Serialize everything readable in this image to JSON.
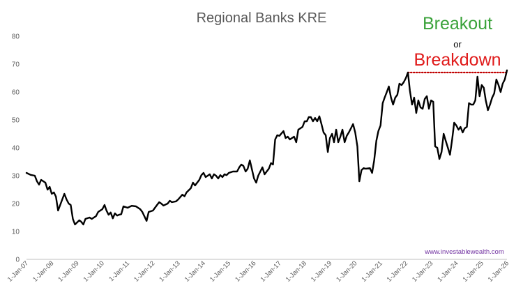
{
  "chart_data": {
    "type": "line",
    "title": "Regional Banks KRE",
    "xlabel": "",
    "ylabel": "",
    "ylim": [
      0,
      80
    ],
    "yticks": [
      "0",
      "10",
      "20",
      "30",
      "40",
      "50",
      "60",
      "70",
      "80"
    ],
    "xlim": [
      "2007-01-01",
      "2026-01-01"
    ],
    "xticks": [
      "1-Jan-07",
      "1-Jan-08",
      "1-Jan-09",
      "1-Jan-10",
      "1-Jan-11",
      "1-Jan-12",
      "1-Jan-13",
      "1-Jan-14",
      "1-Jan-15",
      "1-Jan-16",
      "1-Jan-17",
      "1-Jan-18",
      "1-Jan-19",
      "1-Jan-20",
      "1-Jan-21",
      "1-Jan-22",
      "1-Jan-23",
      "1-Jan-24",
      "1-Jan-25",
      "1-Jan-26"
    ],
    "grid": false,
    "series": [
      {
        "color": "#000000",
        "points": [
          [
            "2007-01",
            31
          ],
          [
            "2007-03",
            30.3
          ],
          [
            "2007-05",
            30
          ],
          [
            "2007-06",
            28
          ],
          [
            "2007-07",
            26.8
          ],
          [
            "2007-08",
            28.5
          ],
          [
            "2007-09",
            28
          ],
          [
            "2007-10",
            27.5
          ],
          [
            "2007-11",
            25
          ],
          [
            "2007-12",
            26
          ],
          [
            "2008-01",
            23.5
          ],
          [
            "2008-02",
            24
          ],
          [
            "2008-03",
            22.5
          ],
          [
            "2008-04",
            17.5
          ],
          [
            "2008-06",
            21.5
          ],
          [
            "2008-07",
            23.5
          ],
          [
            "2008-08",
            21.5
          ],
          [
            "2008-09",
            20
          ],
          [
            "2008-10",
            19.5
          ],
          [
            "2008-11",
            14.5
          ],
          [
            "2008-12",
            12.5
          ],
          [
            "2009-02",
            14
          ],
          [
            "2009-03",
            13.5
          ],
          [
            "2009-04",
            12.5
          ],
          [
            "2009-05",
            14.5
          ],
          [
            "2009-07",
            15
          ],
          [
            "2009-08",
            14.5
          ],
          [
            "2009-10",
            15.5
          ],
          [
            "2009-11",
            17
          ],
          [
            "2010-01",
            18
          ],
          [
            "2010-02",
            19.5
          ],
          [
            "2010-03",
            17.5
          ],
          [
            "2010-04",
            16
          ],
          [
            "2010-05",
            16.8
          ],
          [
            "2010-06",
            14.7
          ],
          [
            "2010-07",
            16.5
          ],
          [
            "2010-08",
            15.7
          ],
          [
            "2010-09",
            16
          ],
          [
            "2010-10",
            16.2
          ],
          [
            "2010-11",
            19
          ],
          [
            "2011-01",
            18.5
          ],
          [
            "2011-03",
            19.2
          ],
          [
            "2011-05",
            19
          ],
          [
            "2011-07",
            18
          ],
          [
            "2011-08",
            17
          ],
          [
            "2011-10",
            13.8
          ],
          [
            "2011-11",
            17
          ],
          [
            "2012-01",
            17.5
          ],
          [
            "2012-03",
            19.5
          ],
          [
            "2012-04",
            20.5
          ],
          [
            "2012-05",
            20
          ],
          [
            "2012-06",
            19.3
          ],
          [
            "2012-08",
            20
          ],
          [
            "2012-09",
            21
          ],
          [
            "2012-10",
            20.5
          ],
          [
            "2012-12",
            20.8
          ],
          [
            "2013-01",
            21.5
          ],
          [
            "2013-03",
            23.2
          ],
          [
            "2013-04",
            22.6
          ],
          [
            "2013-05",
            24
          ],
          [
            "2013-07",
            25.5
          ],
          [
            "2013-08",
            27.5
          ],
          [
            "2013-09",
            26.5
          ],
          [
            "2013-11",
            28.5
          ],
          [
            "2013-12",
            30.2
          ],
          [
            "2014-01",
            31
          ],
          [
            "2014-02",
            29.5
          ],
          [
            "2014-04",
            30.5
          ],
          [
            "2014-05",
            29
          ],
          [
            "2014-06",
            30.5
          ],
          [
            "2014-07",
            30
          ],
          [
            "2014-08",
            29
          ],
          [
            "2014-09",
            30.2
          ],
          [
            "2014-10",
            29.5
          ],
          [
            "2014-11",
            30.5
          ],
          [
            "2014-12",
            30.2
          ],
          [
            "2015-01",
            31
          ],
          [
            "2015-03",
            31.5
          ],
          [
            "2015-05",
            31.5
          ],
          [
            "2015-06",
            33
          ],
          [
            "2015-07",
            34
          ],
          [
            "2015-08",
            33.5
          ],
          [
            "2015-09",
            31.5
          ],
          [
            "2015-10",
            32.5
          ],
          [
            "2015-11",
            35.5
          ],
          [
            "2016-01",
            29
          ],
          [
            "2016-02",
            27.5
          ],
          [
            "2016-03",
            30
          ],
          [
            "2016-05",
            33
          ],
          [
            "2016-06",
            30.5
          ],
          [
            "2016-08",
            32.5
          ],
          [
            "2016-09",
            34.5
          ],
          [
            "2016-10",
            34
          ],
          [
            "2016-11",
            43
          ],
          [
            "2016-12",
            44.5
          ],
          [
            "2017-01",
            44.3
          ],
          [
            "2017-03",
            46
          ],
          [
            "2017-04",
            43.5
          ],
          [
            "2017-05",
            44
          ],
          [
            "2017-06",
            43
          ],
          [
            "2017-08",
            44
          ],
          [
            "2017-09",
            42
          ],
          [
            "2017-10",
            46.5
          ],
          [
            "2017-12",
            47.5
          ],
          [
            "2018-01",
            49.5
          ],
          [
            "2018-02",
            49.5
          ],
          [
            "2018-03",
            51
          ],
          [
            "2018-04",
            51
          ],
          [
            "2018-05",
            49.5
          ],
          [
            "2018-06",
            50.7
          ],
          [
            "2018-07",
            49.5
          ],
          [
            "2018-08",
            51.3
          ],
          [
            "2018-09",
            48.5
          ],
          [
            "2018-10",
            45.5
          ],
          [
            "2018-11",
            44.5
          ],
          [
            "2018-12",
            38.5
          ],
          [
            "2019-01",
            43.5
          ],
          [
            "2019-02",
            45
          ],
          [
            "2019-03",
            42
          ],
          [
            "2019-04",
            46.5
          ],
          [
            "2019-05",
            42
          ],
          [
            "2019-06",
            44
          ],
          [
            "2019-07",
            46.5
          ],
          [
            "2019-08",
            42
          ],
          [
            "2019-09",
            44.3
          ],
          [
            "2019-10",
            45.5
          ],
          [
            "2019-11",
            47
          ],
          [
            "2019-12",
            48.5
          ],
          [
            "2020-01",
            45.5
          ],
          [
            "2020-02",
            40.5
          ],
          [
            "2020-03",
            28
          ],
          [
            "2020-04",
            32
          ],
          [
            "2020-05",
            32.7
          ],
          [
            "2020-06",
            32.5
          ],
          [
            "2020-08",
            32.7
          ],
          [
            "2020-09",
            31
          ],
          [
            "2020-10",
            35.5
          ],
          [
            "2020-11",
            42.5
          ],
          [
            "2020-12",
            46
          ],
          [
            "2021-01",
            48
          ],
          [
            "2021-02",
            56
          ],
          [
            "2021-03",
            58
          ],
          [
            "2021-04",
            60
          ],
          [
            "2021-05",
            62
          ],
          [
            "2021-06",
            58
          ],
          [
            "2021-07",
            55.5
          ],
          [
            "2021-08",
            58
          ],
          [
            "2021-09",
            59
          ],
          [
            "2021-10",
            63
          ],
          [
            "2021-11",
            62.5
          ],
          [
            "2021-12",
            63.5
          ],
          [
            "2022-01",
            65
          ],
          [
            "2022-02",
            67
          ],
          [
            "2022-03",
            60.5
          ],
          [
            "2022-04",
            55.5
          ],
          [
            "2022-05",
            58
          ],
          [
            "2022-06",
            52.5
          ],
          [
            "2022-07",
            57
          ],
          [
            "2022-08",
            54.5
          ],
          [
            "2022-09",
            54
          ],
          [
            "2022-10",
            57.5
          ],
          [
            "2022-11",
            58.5
          ],
          [
            "2022-12",
            54
          ],
          [
            "2023-01",
            57
          ],
          [
            "2023-02",
            56.5
          ],
          [
            "2023-03",
            40.5
          ],
          [
            "2023-04",
            40
          ],
          [
            "2023-05",
            36
          ],
          [
            "2023-06",
            38.5
          ],
          [
            "2023-07",
            45
          ],
          [
            "2023-08",
            42.5
          ],
          [
            "2023-09",
            40
          ],
          [
            "2023-10",
            37.5
          ],
          [
            "2023-11",
            43
          ],
          [
            "2023-12",
            49
          ],
          [
            "2024-01",
            48
          ],
          [
            "2024-02",
            46.5
          ],
          [
            "2024-03",
            47.5
          ],
          [
            "2024-04",
            45.5
          ],
          [
            "2024-05",
            47
          ],
          [
            "2024-06",
            47.5
          ],
          [
            "2024-07",
            56
          ],
          [
            "2024-08",
            55.5
          ],
          [
            "2024-09",
            55.5
          ],
          [
            "2024-10",
            57
          ],
          [
            "2024-11",
            65.5
          ],
          [
            "2024-12",
            58.5
          ],
          [
            "2025-01",
            62.5
          ],
          [
            "2025-02",
            61.5
          ],
          [
            "2025-03",
            57
          ],
          [
            "2025-04",
            53.5
          ],
          [
            "2025-05",
            55.5
          ],
          [
            "2025-06",
            58
          ],
          [
            "2025-07",
            59.5
          ],
          [
            "2025-08",
            64.5
          ],
          [
            "2025-09",
            62.5
          ],
          [
            "2025-10",
            60
          ],
          [
            "2025-11",
            63
          ],
          [
            "2025-12",
            64.5
          ],
          [
            "2026-01",
            67.8
          ]
        ]
      }
    ],
    "reference_line": {
      "value": 67,
      "from": "2022-02",
      "to": "2026-01",
      "color": "#c00000",
      "style": "dotted"
    },
    "annotations": {
      "breakout": "Breakout",
      "or": "or",
      "breakdown": "Breakdown"
    },
    "watermark": "www.investablewealth.com"
  },
  "colors": {
    "breakout": "#3aa23a",
    "breakdown": "#e01b1b",
    "line": "#000000",
    "axis": "#bfbfbf",
    "watermark": "#7030a0"
  }
}
